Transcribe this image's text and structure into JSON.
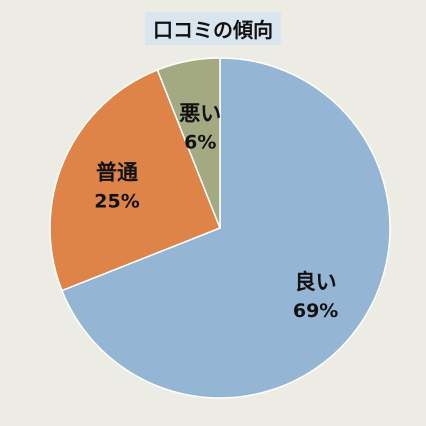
{
  "chart_data": {
    "type": "pie",
    "title": "口コミの傾向",
    "categories": [
      "良い",
      "普通",
      "悪い"
    ],
    "values": [
      69,
      25,
      6
    ],
    "value_labels": [
      "69%",
      "25%",
      "6%"
    ],
    "colors": [
      "#94b5d4",
      "#de8449",
      "#a3aa82"
    ],
    "start_angle_deg": 0,
    "direction": "clockwise",
    "legend": "none"
  }
}
